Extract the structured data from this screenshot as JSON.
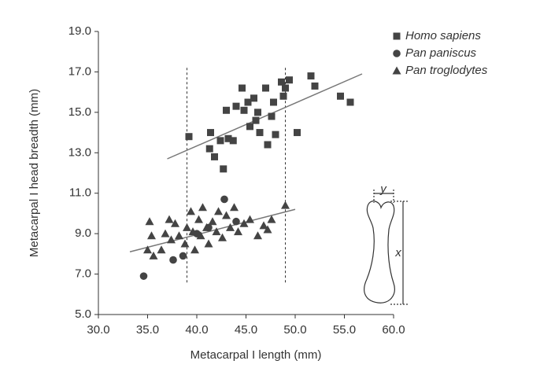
{
  "chart_data": {
    "type": "scatter",
    "x_label": "Metacarpal I length (mm)",
    "y_label": "Metacarpal I head breadth (mm)",
    "xlim": [
      30,
      60
    ],
    "ylim": [
      5,
      19
    ],
    "xticks": [
      {
        "value": 30,
        "label": "30.0"
      },
      {
        "value": 35,
        "label": "35.0"
      },
      {
        "value": 40,
        "label": "40.0"
      },
      {
        "value": 45,
        "label": "45.0"
      },
      {
        "value": 50,
        "label": "50.0"
      },
      {
        "value": 55,
        "label": "55.0"
      },
      {
        "value": 60,
        "label": "60.0"
      }
    ],
    "yticks": [
      {
        "value": 5,
        "label": "5.0"
      },
      {
        "value": 7,
        "label": "7.0"
      },
      {
        "value": 9,
        "label": "9.0"
      },
      {
        "value": 11,
        "label": "11.0"
      },
      {
        "value": 13,
        "label": "13.0"
      },
      {
        "value": 15,
        "label": "15.0"
      },
      {
        "value": 17,
        "label": "17.0"
      },
      {
        "value": 19,
        "label": "19.0"
      }
    ],
    "legend": "top-right",
    "series": [
      {
        "name": "Homo sapiens",
        "marker": "square",
        "color": "#444444",
        "x": [
          39.2,
          41.4,
          41.3,
          41.8,
          42.4,
          42.7,
          43.0,
          43.7,
          44.0,
          44.6,
          45.2,
          45.4,
          45.8,
          46.0,
          46.4,
          47.0,
          47.6,
          47.8,
          48.0,
          48.6,
          49.0,
          49.4,
          50.2,
          51.6,
          52.0,
          54.6,
          55.6,
          44.8,
          46.2,
          47.2,
          43.2,
          48.8
        ],
        "values": [
          13.8,
          14.0,
          13.2,
          12.8,
          13.6,
          12.2,
          15.1,
          13.6,
          15.3,
          16.2,
          15.5,
          14.3,
          15.7,
          14.6,
          14.0,
          16.2,
          14.8,
          15.5,
          13.9,
          16.5,
          16.2,
          16.6,
          14.0,
          16.8,
          16.3,
          15.8,
          15.5,
          15.1,
          15.0,
          13.4,
          13.7,
          15.8
        ]
      },
      {
        "name": "Pan paniscus",
        "marker": "circle",
        "color": "#444444",
        "x": [
          34.6,
          42.8,
          37.6,
          38.6,
          40.0,
          41.2,
          44.0
        ],
        "values": [
          6.9,
          10.7,
          7.7,
          7.9,
          9.0,
          9.3,
          9.6
        ]
      },
      {
        "name": "Pan troglodytes",
        "marker": "triangle",
        "color": "#444444",
        "x": [
          35.2,
          35.4,
          35.0,
          35.6,
          36.4,
          36.8,
          37.2,
          37.4,
          37.8,
          38.2,
          38.8,
          39.0,
          39.4,
          39.6,
          39.8,
          40.2,
          40.4,
          40.6,
          41.0,
          41.2,
          41.6,
          42.0,
          42.2,
          42.6,
          43.0,
          43.4,
          43.8,
          44.2,
          44.8,
          45.4,
          46.2,
          46.8,
          47.2,
          47.6,
          49.0
        ],
        "values": [
          9.6,
          8.9,
          8.2,
          7.9,
          8.2,
          9.0,
          9.7,
          8.7,
          9.5,
          8.9,
          8.5,
          9.3,
          10.1,
          9.1,
          8.2,
          9.7,
          8.9,
          10.3,
          9.3,
          8.5,
          9.6,
          9.1,
          10.1,
          8.8,
          9.9,
          9.3,
          10.3,
          9.1,
          9.5,
          9.7,
          8.9,
          9.4,
          9.2,
          9.7,
          10.4
        ]
      }
    ],
    "trend_lines": [
      {
        "x": [
          37.0,
          56.8
        ],
        "y": [
          12.7,
          16.9
        ]
      },
      {
        "x": [
          33.2,
          50.0
        ],
        "y": [
          8.1,
          10.2
        ]
      }
    ],
    "vlines": [
      39,
      49
    ],
    "vline_range": [
      6.5,
      17.2
    ],
    "inset_labels": [
      "y",
      "x"
    ]
  }
}
